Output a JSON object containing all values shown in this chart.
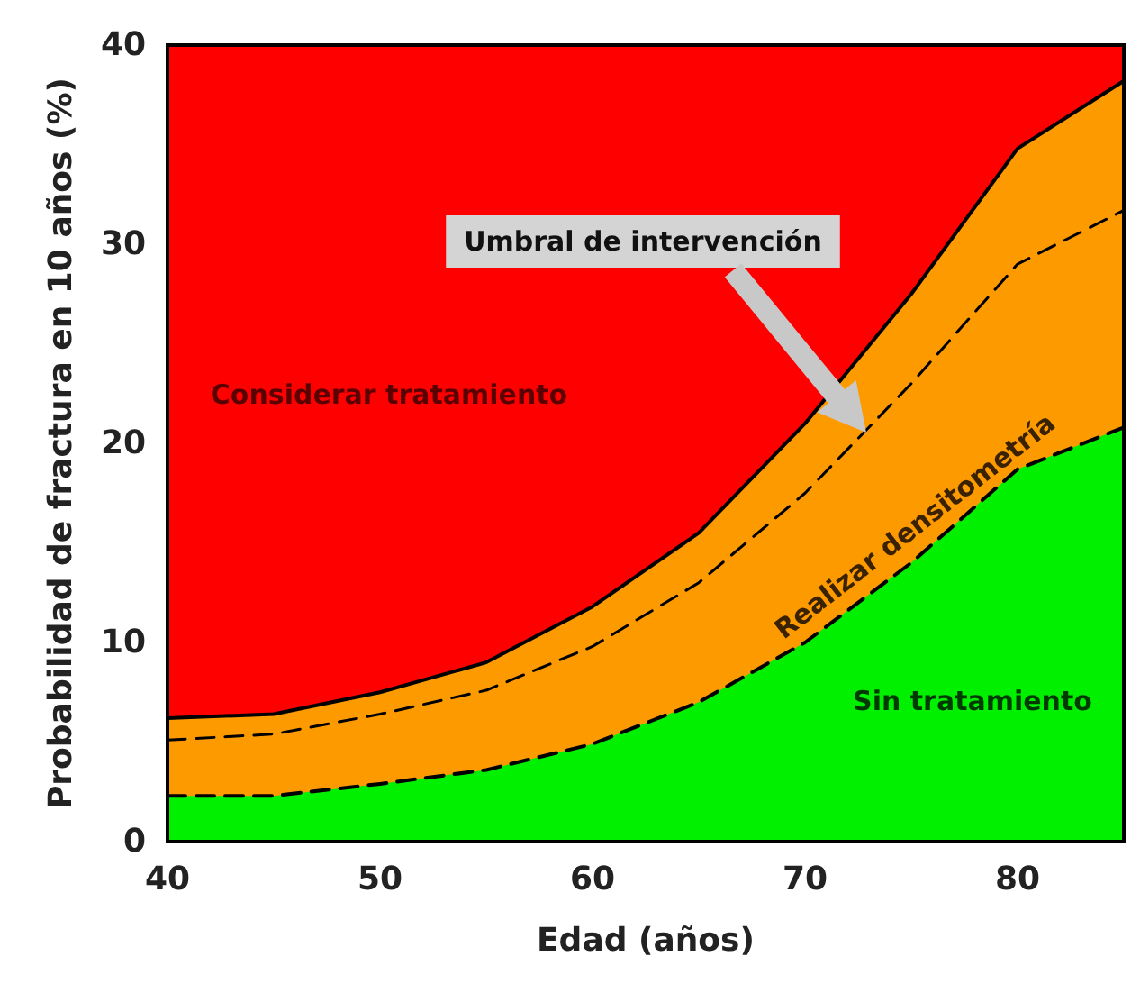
{
  "chart_data": {
    "type": "area",
    "xlabel": "Edad (años)",
    "ylabel": "Probabilidad de fractura en 10 años (%)",
    "x": [
      40,
      45,
      50,
      55,
      60,
      65,
      70,
      75,
      80,
      85
    ],
    "series": [
      {
        "color": "#fd9a00",
        "values": [
          6.2,
          6.4,
          7.5,
          9.0,
          11.8,
          15.5,
          21.0,
          27.5,
          34.8,
          38.2
        ]
      },
      {
        "type": "line",
        "color": "#000000",
        "line_style": "dashed",
        "values": [
          5.1,
          5.4,
          6.4,
          7.6,
          9.8,
          13.0,
          17.5,
          23.0,
          29.0,
          31.7
        ]
      },
      {
        "color": "#00f000",
        "line_style": "dashed",
        "values": [
          2.3,
          2.3,
          2.9,
          3.6,
          4.9,
          7.0,
          10.0,
          14.0,
          18.7,
          20.8
        ]
      }
    ],
    "bands": [
      {
        "axis": "y",
        "from": 0,
        "to": 40,
        "color": "#ff0000"
      }
    ],
    "annotations": [
      "Umbral de intervención",
      "Considerar tratamiento",
      "Realizar densitometría",
      "Sin tratamiento"
    ],
    "xlim": [
      40,
      85
    ],
    "xticks": [
      40,
      50,
      60,
      70,
      80
    ],
    "ylim": [
      0,
      40
    ],
    "yticks": [
      0,
      10,
      20,
      30,
      40
    ],
    "line_style": "solid"
  }
}
